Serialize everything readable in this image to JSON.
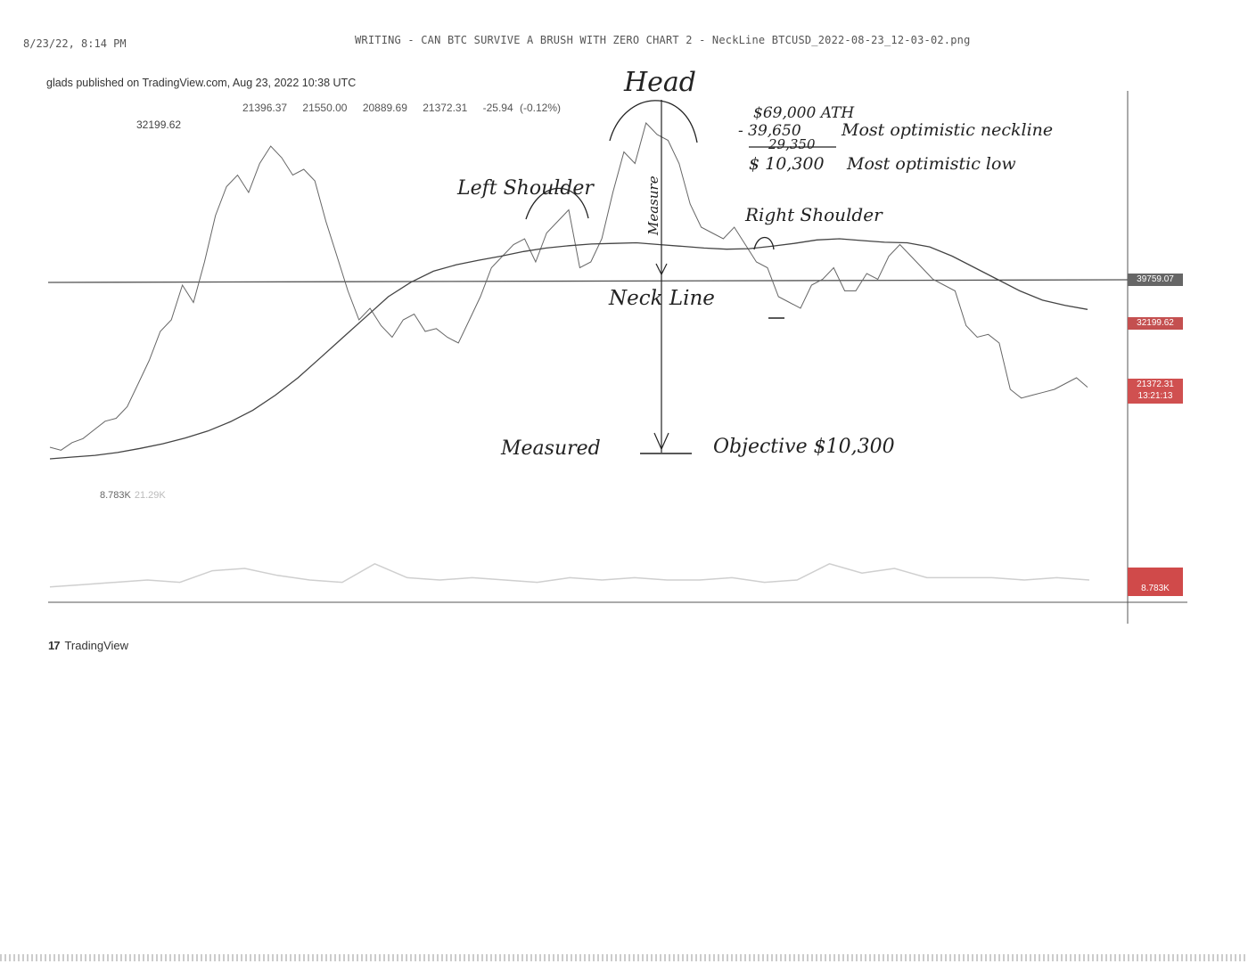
{
  "print_header": {
    "stamp": "8/23/22, 8:14 PM",
    "doc_title": "WRITING - CAN BTC SURVIVE A BRUSH WITH ZERO CHART 2 - NeckLine BTCUSD_2022-08-23_12-03-02.png"
  },
  "publisher": "glads published on TradingView.com, Aug 23, 2022 10:38 UTC",
  "ohlc": [
    "21396.37",
    "21550.00",
    "20889.69",
    "21372.31",
    "-25.94 (-0.12%)"
  ],
  "top_value": "32199.62",
  "volume": {
    "value": "8.783K",
    "faint": "21.29K"
  },
  "price_tags": {
    "neckline": "39759.07",
    "level": "32199.62",
    "last_price": "21372.31",
    "countdown": "13:21:13",
    "volume": "8.783K"
  },
  "annotations": {
    "head": "Head",
    "left_shoulder": "Left Shoulder",
    "right_shoulder": "Right Shoulder",
    "measure": "Measure",
    "neckline": "Neck Line",
    "measured": "Measured",
    "objective": "Objective $10,300",
    "calc": {
      "line1": "$69,000 ATH",
      "line2a": "- 39,650",
      "line2b": "Most optimistic neckline",
      "line3": "29,350",
      "line4a": "$ 10,300",
      "line4b": "Most optimistic low"
    }
  },
  "brand": {
    "logo": "17",
    "name": "TradingView"
  },
  "colors": {
    "price_line": "#666666",
    "ma_line": "#444444",
    "neckline": "#555555",
    "volume_line": "#cfcfcf",
    "tag_red": "#d05050"
  },
  "chart_data": {
    "type": "line",
    "y_domain": [
      9000,
      69000
    ],
    "series": [
      {
        "values": [
          11000,
          10500,
          11800,
          12500,
          14000,
          15500,
          16000,
          18000,
          22000,
          26000,
          31000,
          33000,
          39000,
          36000,
          43000,
          51000,
          56000,
          58000,
          55000,
          60000,
          63000,
          61000,
          58000,
          59000,
          57000,
          50000,
          44000,
          38000,
          33000,
          35000,
          32000,
          30000,
          33000,
          34000,
          31000,
          31500,
          30000,
          29000,
          33000,
          37000,
          42000,
          44000,
          46000,
          47000,
          43000,
          48000,
          50000,
          52000,
          42000,
          43000,
          47000,
          55000,
          62000,
          60000,
          67000,
          65000,
          64000,
          60000,
          53000,
          49000,
          48000,
          47000,
          49000,
          46000,
          43000,
          42000,
          37000,
          36000,
          35000,
          39000,
          40000,
          42000,
          38000,
          38000,
          41000,
          40000,
          44000,
          46000,
          44000,
          42000,
          40000,
          39000,
          38000,
          32000,
          30000,
          30500,
          29000,
          21000,
          19500,
          20000,
          20500,
          21000,
          22000,
          23000,
          21372
        ]
      },
      {
        "values": [
          9000,
          9300,
          9600,
          10100,
          10800,
          11600,
          12600,
          13800,
          15400,
          17400,
          20000,
          23000,
          26500,
          30000,
          33500,
          37000,
          39500,
          41400,
          42500,
          43300,
          44000,
          44800,
          45400,
          45800,
          46100,
          46200,
          46300,
          46000,
          45700,
          45400,
          45200,
          45300,
          45700,
          46200,
          46800,
          47000,
          46700,
          46400,
          46300,
          45600,
          44000,
          42000,
          40000,
          38000,
          36400,
          35500,
          34800
        ]
      },
      {
        "values": [
          2,
          3,
          4,
          5,
          4,
          9,
          10,
          7,
          5,
          4,
          12,
          6,
          5,
          6,
          5,
          4,
          6,
          5,
          6,
          5,
          5,
          6,
          4,
          5,
          12,
          8,
          10,
          6,
          6,
          6,
          5,
          6,
          5
        ]
      }
    ],
    "annotations": [
      "Head",
      "Left Shoulder",
      "Right Shoulder",
      "Neck Line",
      "Measured Objective $10,300"
    ]
  }
}
